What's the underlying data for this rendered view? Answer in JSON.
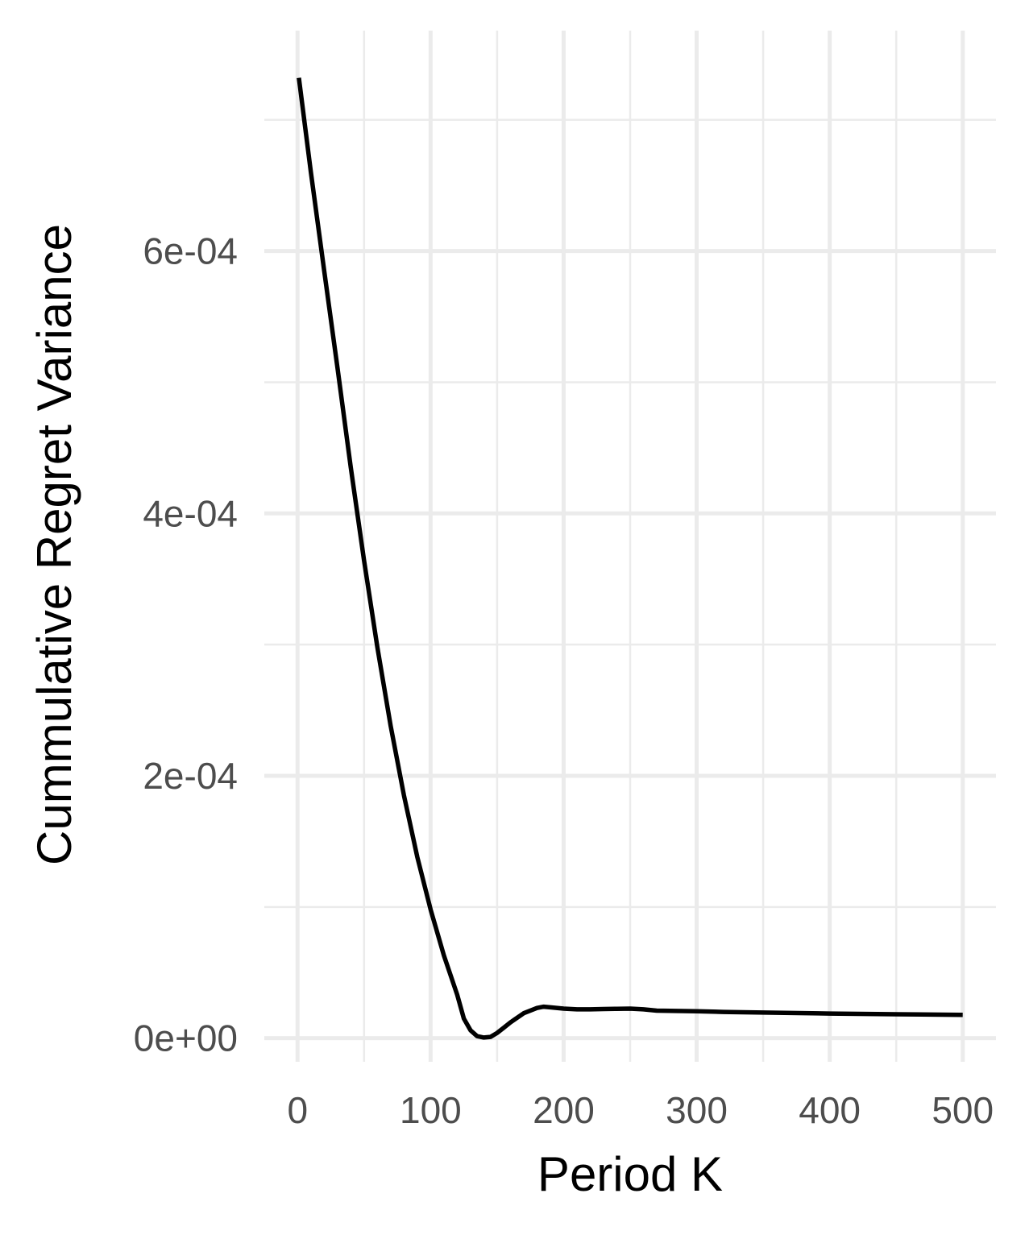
{
  "chart_data": {
    "type": "line",
    "title": "",
    "xlabel": "Period K",
    "ylabel": "Cummulative Regret Variance",
    "xlim": [
      -25,
      525
    ],
    "ylim": [
      -1.8e-05,
      0.000768
    ],
    "x_ticks": [
      0,
      100,
      200,
      300,
      400,
      500
    ],
    "x_tick_labels": [
      "0",
      "100",
      "200",
      "300",
      "400",
      "500"
    ],
    "x_minor_ticks": [
      50,
      150,
      250,
      350,
      450
    ],
    "y_ticks": [
      0,
      0.0002,
      0.0004,
      0.0006
    ],
    "y_tick_labels": [
      "0e+00",
      "2e-04",
      "4e-04",
      "6e-04"
    ],
    "y_minor_ticks": [
      0.0001,
      0.0003,
      0.0005,
      0.0007
    ],
    "grid": true,
    "legend": "none",
    "series": [
      {
        "color": "#000000",
        "x": [
          1,
          10,
          20,
          30,
          40,
          50,
          60,
          70,
          80,
          90,
          100,
          110,
          120,
          125,
          130,
          135,
          140,
          145,
          150,
          155,
          160,
          170,
          180,
          185,
          190,
          200,
          210,
          220,
          230,
          240,
          250,
          260,
          270,
          280,
          300,
          320,
          350,
          400,
          450,
          500
        ],
        "y": [
          0.000732,
          0.00066,
          0.000585,
          0.000511,
          0.000435,
          0.000364,
          0.000298,
          0.000238,
          0.000185,
          0.000138,
          9.8e-05,
          6.3e-05,
          3.3e-05,
          1.5e-05,
          6e-06,
          1.5e-06,
          5e-07,
          1e-06,
          4e-06,
          8e-06,
          1.2e-05,
          1.9e-05,
          2.3e-05,
          2.4e-05,
          2.35e-05,
          2.25e-05,
          2.2e-05,
          2.2e-05,
          2.22e-05,
          2.24e-05,
          2.25e-05,
          2.2e-05,
          2.1e-05,
          2.08e-05,
          2.05e-05,
          2e-05,
          1.95e-05,
          1.88e-05,
          1.82e-05,
          1.78e-05
        ]
      }
    ]
  }
}
